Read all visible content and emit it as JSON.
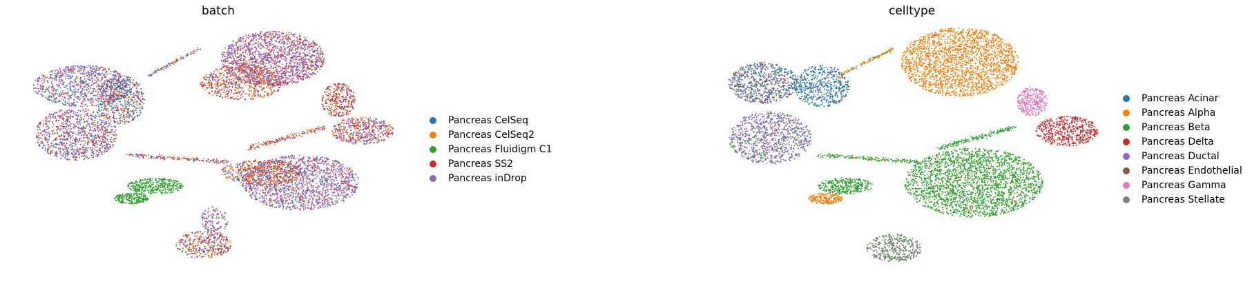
{
  "chart_data": [
    {
      "type": "scatter",
      "title": "batch",
      "xlabel": "",
      "ylabel": "",
      "grid": false,
      "axes_visible": false,
      "legend_placement": "right",
      "legend": [
        {
          "name": "Pancreas CelSeq",
          "color": "#1f77b4"
        },
        {
          "name": "Pancreas CelSeq2",
          "color": "#ff7f0e"
        },
        {
          "name": "Pancreas Fluidigm C1",
          "color": "#2ca02c"
        },
        {
          "name": "Pancreas SS2",
          "color": "#d62728"
        },
        {
          "name": "Pancreas inDrop",
          "color": "#9467bd"
        }
      ]
    },
    {
      "type": "scatter",
      "title": "celltype",
      "xlabel": "",
      "ylabel": "",
      "grid": false,
      "axes_visible": false,
      "legend_placement": "right",
      "legend": [
        {
          "name": "Pancreas Acinar",
          "color": "#1f77b4"
        },
        {
          "name": "Pancreas Alpha",
          "color": "#ff7f0e"
        },
        {
          "name": "Pancreas Beta",
          "color": "#2ca02c"
        },
        {
          "name": "Pancreas Delta",
          "color": "#d62728"
        },
        {
          "name": "Pancreas Ductal",
          "color": "#9467bd"
        },
        {
          "name": "Pancreas Endothelial",
          "color": "#8c564b"
        },
        {
          "name": "Pancreas Gamma",
          "color": "#e377c2"
        },
        {
          "name": "Pancreas Stellate",
          "color": "#7f7f7f"
        }
      ]
    }
  ]
}
